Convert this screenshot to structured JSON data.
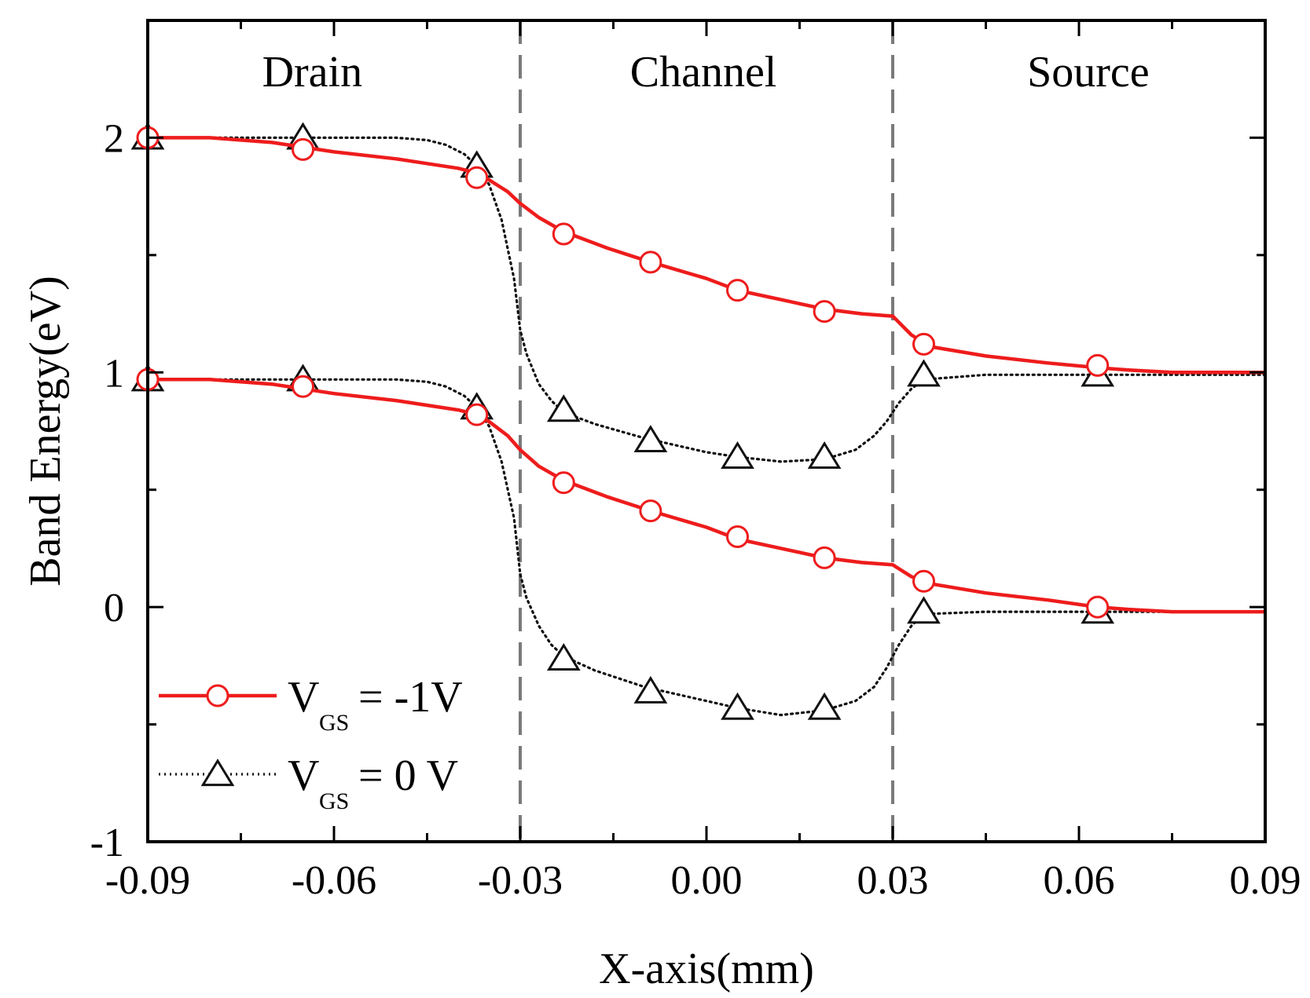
{
  "chart_data": {
    "type": "line",
    "xlabel": "X-axis(mm)",
    "ylabel": "Band Energy(eV)",
    "xlim": [
      -0.09,
      0.09
    ],
    "ylim": [
      -1,
      2.5
    ],
    "x_ticks": [
      -0.09,
      -0.06,
      -0.03,
      0.0,
      0.03,
      0.06,
      0.09
    ],
    "x_tick_labels": [
      "-0.09",
      "-0.06",
      "-0.03",
      "0.00",
      "0.03",
      "0.06",
      "0.09"
    ],
    "y_ticks": [
      -1,
      0,
      1,
      2
    ],
    "y_tick_labels": [
      "-1",
      "0",
      "1",
      "2"
    ],
    "regions": [
      {
        "label": "Drain",
        "x_center": -0.0635
      },
      {
        "label": "Channel",
        "x_center": -0.0005
      },
      {
        "label": "Source",
        "x_center": 0.0615
      }
    ],
    "region_boundaries": [
      -0.03,
      0.03
    ],
    "series": [
      {
        "name": "V_GS = -1V",
        "legend_main": "V",
        "legend_sub": "GS",
        "legend_rest": "= -1V",
        "color": "#ee1c1c",
        "style": "solid",
        "marker": "circle",
        "lines": [
          {
            "band": "conduction",
            "x": [
              -0.09,
              -0.08,
              -0.07,
              -0.065,
              -0.06,
              -0.05,
              -0.045,
              -0.04,
              -0.037,
              -0.035,
              -0.032,
              -0.03,
              -0.027,
              -0.023,
              -0.016,
              -0.009,
              0.0,
              0.005,
              0.012,
              0.019,
              0.025,
              0.03,
              0.033,
              0.036,
              0.045,
              0.055,
              0.063,
              0.068,
              0.075,
              0.09
            ],
            "y": [
              2.0,
              2.0,
              1.98,
              1.96,
              1.94,
              1.91,
              1.89,
              1.87,
              1.85,
              1.82,
              1.77,
              1.72,
              1.66,
              1.6,
              1.53,
              1.47,
              1.4,
              1.35,
              1.31,
              1.27,
              1.25,
              1.24,
              1.16,
              1.11,
              1.07,
              1.04,
              1.02,
              1.01,
              1.0,
              1.0
            ],
            "markers_x": [
              -0.09,
              -0.065,
              -0.037,
              -0.023,
              -0.009,
              0.005,
              0.019,
              0.035,
              0.063
            ],
            "markers_y": [
              2.0,
              1.95,
              1.83,
              1.59,
              1.47,
              1.35,
              1.26,
              1.12,
              1.03
            ]
          },
          {
            "band": "valence",
            "x": [
              -0.09,
              -0.08,
              -0.07,
              -0.065,
              -0.06,
              -0.05,
              -0.045,
              -0.04,
              -0.037,
              -0.035,
              -0.032,
              -0.03,
              -0.027,
              -0.023,
              -0.016,
              -0.009,
              0.0,
              0.005,
              0.012,
              0.019,
              0.025,
              0.03,
              0.033,
              0.036,
              0.045,
              0.055,
              0.063,
              0.068,
              0.075,
              0.09
            ],
            "y": [
              0.97,
              0.97,
              0.95,
              0.93,
              0.91,
              0.88,
              0.86,
              0.84,
              0.82,
              0.79,
              0.73,
              0.67,
              0.6,
              0.54,
              0.47,
              0.41,
              0.34,
              0.29,
              0.25,
              0.21,
              0.19,
              0.18,
              0.13,
              0.1,
              0.06,
              0.03,
              0.0,
              -0.01,
              -0.02,
              -0.02
            ],
            "markers_x": [
              -0.09,
              -0.065,
              -0.037,
              -0.023,
              -0.009,
              0.005,
              0.019,
              0.035,
              0.063
            ],
            "markers_y": [
              0.97,
              0.94,
              0.82,
              0.53,
              0.41,
              0.3,
              0.21,
              0.11,
              0.0
            ]
          }
        ]
      },
      {
        "name": "V_GS = 0 V",
        "legend_main": "V",
        "legend_sub": "GS",
        "legend_rest": "= 0 V",
        "color": "#111111",
        "style": "dotted",
        "marker": "triangle",
        "lines": [
          {
            "band": "conduction",
            "x": [
              -0.09,
              -0.075,
              -0.06,
              -0.05,
              -0.045,
              -0.042,
              -0.039,
              -0.037,
              -0.035,
              -0.033,
              -0.031,
              -0.03,
              -0.029,
              -0.027,
              -0.025,
              -0.023,
              -0.018,
              -0.01,
              0.0,
              0.005,
              0.012,
              0.019,
              0.024,
              0.027,
              0.029,
              0.031,
              0.033,
              0.035,
              0.045,
              0.06,
              0.075,
              0.09
            ],
            "y": [
              2.0,
              2.0,
              2.0,
              2.0,
              1.99,
              1.97,
              1.93,
              1.88,
              1.8,
              1.65,
              1.4,
              1.18,
              1.08,
              0.95,
              0.88,
              0.83,
              0.78,
              0.72,
              0.66,
              0.64,
              0.62,
              0.63,
              0.67,
              0.73,
              0.79,
              0.87,
              0.93,
              0.97,
              0.99,
              0.99,
              0.99,
              0.99
            ],
            "markers_x": [
              -0.09,
              -0.065,
              -0.037,
              -0.023,
              -0.009,
              0.005,
              0.019,
              0.035,
              0.063
            ],
            "markers_y": [
              2.0,
              2.0,
              1.88,
              0.84,
              0.71,
              0.64,
              0.64,
              0.99,
              0.99
            ]
          },
          {
            "band": "valence",
            "x": [
              -0.09,
              -0.075,
              -0.06,
              -0.05,
              -0.045,
              -0.042,
              -0.039,
              -0.037,
              -0.035,
              -0.033,
              -0.031,
              -0.03,
              -0.029,
              -0.027,
              -0.025,
              -0.023,
              -0.018,
              -0.01,
              0.0,
              0.005,
              0.012,
              0.019,
              0.024,
              0.027,
              0.029,
              0.031,
              0.033,
              0.035,
              0.045,
              0.06,
              0.075,
              0.09
            ],
            "y": [
              0.97,
              0.97,
              0.97,
              0.97,
              0.96,
              0.94,
              0.9,
              0.85,
              0.77,
              0.62,
              0.38,
              0.14,
              0.04,
              -0.08,
              -0.16,
              -0.21,
              -0.27,
              -0.34,
              -0.4,
              -0.43,
              -0.46,
              -0.44,
              -0.4,
              -0.34,
              -0.26,
              -0.16,
              -0.08,
              -0.03,
              -0.02,
              -0.02,
              -0.02,
              -0.02
            ],
            "markers_x": [
              -0.09,
              -0.065,
              -0.037,
              -0.023,
              -0.009,
              0.005,
              0.019,
              0.035,
              0.063
            ],
            "markers_y": [
              0.97,
              0.97,
              0.85,
              -0.22,
              -0.36,
              -0.43,
              -0.43,
              -0.02,
              -0.02
            ]
          }
        ]
      }
    ],
    "legend_position": "bottom-left",
    "grid": false
  }
}
